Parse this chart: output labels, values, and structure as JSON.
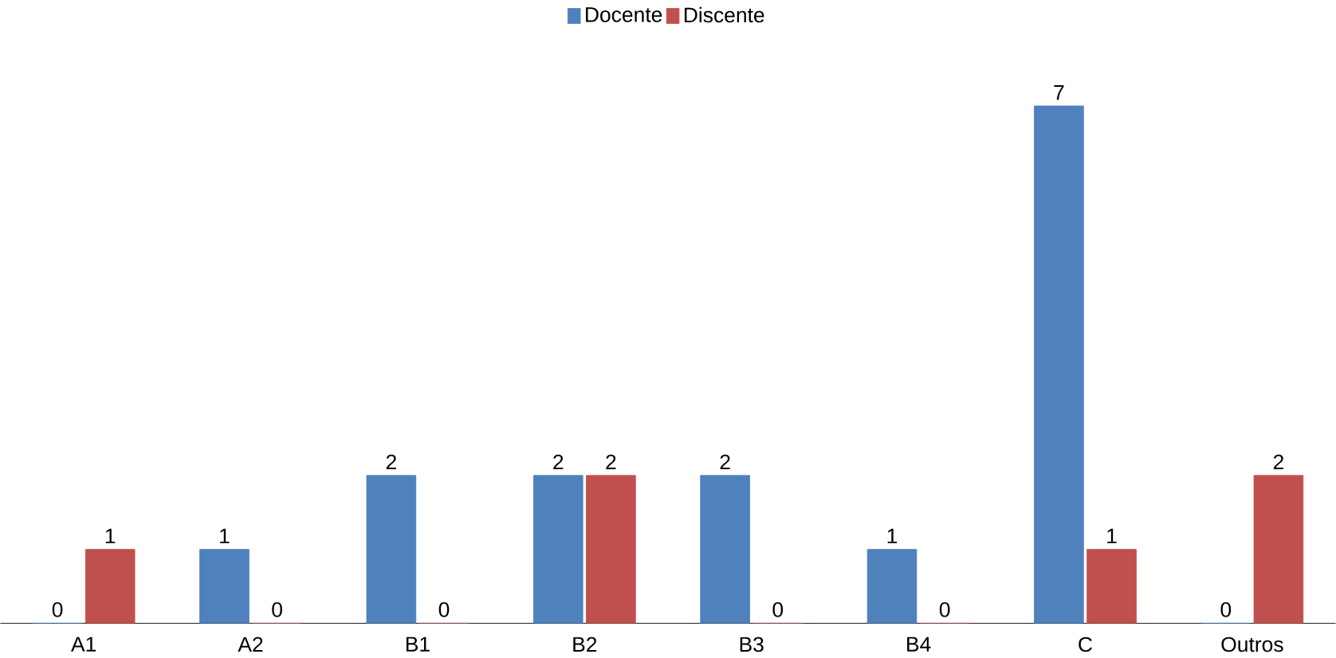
{
  "chart_data": {
    "type": "bar",
    "categories": [
      "A1",
      "A2",
      "B1",
      "B2",
      "B3",
      "B4",
      "C",
      "Outros"
    ],
    "series": [
      {
        "name": "Docente",
        "color": "#4f81bd",
        "values": [
          0,
          1,
          2,
          2,
          2,
          1,
          7,
          0
        ]
      },
      {
        "name": "Discente",
        "color": "#c0504d",
        "values": [
          1,
          0,
          0,
          2,
          0,
          0,
          1,
          2
        ]
      }
    ],
    "data_labels": true,
    "legend": "top"
  }
}
